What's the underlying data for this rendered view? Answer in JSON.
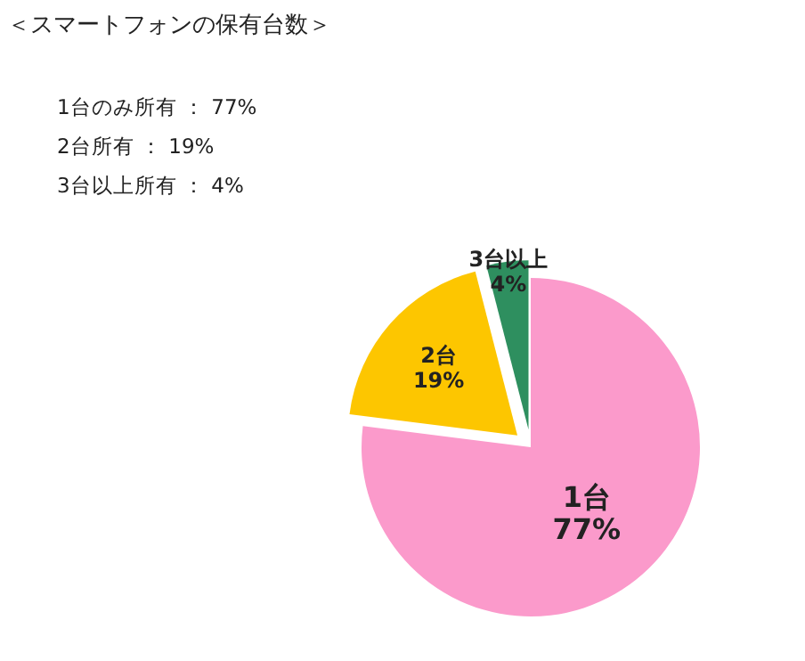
{
  "chart_data": {
    "type": "pie",
    "title": "＜スマートフォンの保有台数＞",
    "annotations": [
      "1台のみ所有 ： 77%",
      "2台所有 ： 19%",
      "3台以上所有 ： 4%"
    ],
    "categories": [
      "1台",
      "2台",
      "3台以上"
    ],
    "values": [
      77,
      19,
      4
    ],
    "value_labels": [
      "77%",
      "19%",
      "4%"
    ],
    "colors": [
      "#fb9acb",
      "#fdc600",
      "#2e8f5f"
    ]
  }
}
